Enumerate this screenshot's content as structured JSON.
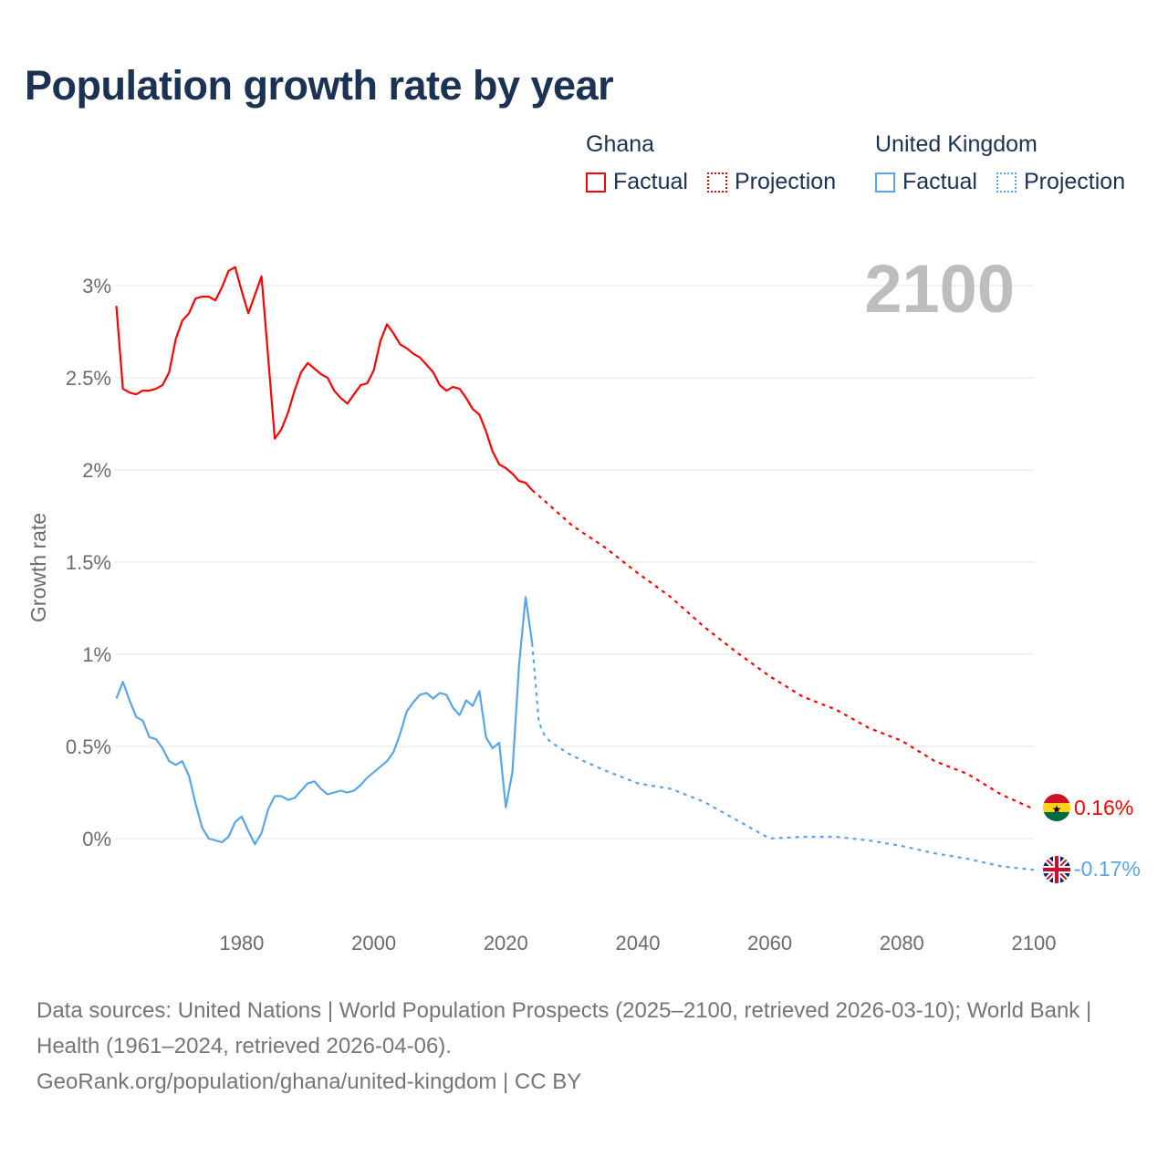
{
  "title": "Population growth rate by year",
  "legend": {
    "groups": [
      {
        "name": "Ghana",
        "color": "#ff0000",
        "factual_label": "Factual",
        "projection_label": "Projection"
      },
      {
        "name": "United Kingdom",
        "color": "#5aa5ea",
        "factual_label": "Factual",
        "projection_label": "Projection"
      }
    ]
  },
  "year_marker": "2100",
  "end_labels": {
    "ghana": "0.16%",
    "uk": "-0.17%"
  },
  "footer": {
    "sources": "Data sources: United Nations | World Population Prospects (2025–2100, retrieved 2026-03-10); World Bank | Health (1961–2024, retrieved 2026-04-06).",
    "link": "GeoRank.org/population/ghana/united-kingdom | CC BY"
  },
  "chart_data": {
    "type": "line",
    "title": "Population growth rate by year",
    "xlabel": "",
    "ylabel": "Growth rate",
    "xlim": [
      1961,
      2100
    ],
    "ylim": [
      -0.4,
      3.2
    ],
    "x_ticks": [
      "1980",
      "2000",
      "2020",
      "2040",
      "2060",
      "2080",
      "2100"
    ],
    "y_ticks": [
      "0%",
      "0.5%",
      "1%",
      "1.5%",
      "2%",
      "2.5%",
      "3%"
    ],
    "grid": true,
    "series": [
      {
        "name": "Ghana Factual",
        "color": "#ff0000",
        "dashed": false,
        "x": [
          1961,
          1962,
          1963,
          1964,
          1965,
          1966,
          1967,
          1968,
          1969,
          1970,
          1971,
          1972,
          1973,
          1974,
          1975,
          1976,
          1977,
          1978,
          1979,
          1980,
          1981,
          1982,
          1983,
          1984,
          1985,
          1986,
          1987,
          1988,
          1989,
          1990,
          1991,
          1992,
          1993,
          1994,
          1995,
          1996,
          1997,
          1998,
          1999,
          2000,
          2001,
          2002,
          2003,
          2004,
          2005,
          2006,
          2007,
          2008,
          2009,
          2010,
          2011,
          2012,
          2013,
          2014,
          2015,
          2016,
          2017,
          2018,
          2019,
          2020,
          2021,
          2022,
          2023,
          2024
        ],
        "y": [
          2.89,
          2.44,
          2.42,
          2.41,
          2.43,
          2.43,
          2.44,
          2.46,
          2.53,
          2.71,
          2.81,
          2.85,
          2.93,
          2.94,
          2.94,
          2.92,
          2.99,
          3.08,
          3.1,
          2.97,
          2.85,
          2.95,
          3.05,
          2.61,
          2.17,
          2.22,
          2.31,
          2.43,
          2.53,
          2.58,
          2.55,
          2.52,
          2.5,
          2.43,
          2.39,
          2.36,
          2.41,
          2.46,
          2.47,
          2.54,
          2.7,
          2.79,
          2.74,
          2.68,
          2.66,
          2.63,
          2.61,
          2.57,
          2.53,
          2.46,
          2.43,
          2.45,
          2.44,
          2.39,
          2.33,
          2.3,
          2.21,
          2.1,
          2.03,
          2.01,
          1.98,
          1.94,
          1.93,
          1.89
        ]
      },
      {
        "name": "Ghana Projection",
        "color": "#ff0000",
        "dashed": true,
        "x": [
          2024,
          2025,
          2030,
          2035,
          2040,
          2045,
          2050,
          2055,
          2060,
          2065,
          2070,
          2075,
          2080,
          2085,
          2090,
          2095,
          2100
        ],
        "y": [
          1.89,
          1.86,
          1.7,
          1.58,
          1.44,
          1.31,
          1.15,
          1.01,
          0.88,
          0.77,
          0.7,
          0.6,
          0.53,
          0.42,
          0.35,
          0.24,
          0.16
        ]
      },
      {
        "name": "United Kingdom Factual",
        "color": "#5aa5ea",
        "dashed": false,
        "x": [
          1961,
          1962,
          1963,
          1964,
          1965,
          1966,
          1967,
          1968,
          1969,
          1970,
          1971,
          1972,
          1973,
          1974,
          1975,
          1976,
          1977,
          1978,
          1979,
          1980,
          1981,
          1982,
          1983,
          1984,
          1985,
          1986,
          1987,
          1988,
          1989,
          1990,
          1991,
          1992,
          1993,
          1994,
          1995,
          1996,
          1997,
          1998,
          1999,
          2000,
          2001,
          2002,
          2003,
          2004,
          2005,
          2006,
          2007,
          2008,
          2009,
          2010,
          2011,
          2012,
          2013,
          2014,
          2015,
          2016,
          2017,
          2018,
          2019,
          2020,
          2021,
          2022,
          2023,
          2024
        ],
        "y": [
          0.76,
          0.85,
          0.75,
          0.66,
          0.64,
          0.55,
          0.54,
          0.49,
          0.42,
          0.4,
          0.42,
          0.34,
          0.19,
          0.06,
          0.0,
          -0.01,
          -0.02,
          0.01,
          0.09,
          0.12,
          0.04,
          -0.03,
          0.03,
          0.16,
          0.23,
          0.23,
          0.21,
          0.22,
          0.26,
          0.3,
          0.31,
          0.27,
          0.24,
          0.25,
          0.26,
          0.25,
          0.26,
          0.29,
          0.33,
          0.36,
          0.39,
          0.42,
          0.47,
          0.57,
          0.69,
          0.74,
          0.78,
          0.79,
          0.76,
          0.79,
          0.78,
          0.71,
          0.67,
          0.75,
          0.72,
          0.8,
          0.55,
          0.49,
          0.52,
          0.17,
          0.36,
          0.94,
          1.31,
          1.06
        ]
      },
      {
        "name": "United Kingdom Projection",
        "color": "#5aa5ea",
        "dashed": true,
        "x": [
          2024,
          2025,
          2026,
          2027,
          2030,
          2035,
          2040,
          2045,
          2050,
          2055,
          2060,
          2065,
          2070,
          2075,
          2080,
          2085,
          2090,
          2095,
          2100
        ],
        "y": [
          1.06,
          0.63,
          0.55,
          0.52,
          0.45,
          0.37,
          0.3,
          0.27,
          0.2,
          0.1,
          0.0,
          0.01,
          0.01,
          -0.01,
          -0.04,
          -0.08,
          -0.11,
          -0.15,
          -0.17
        ]
      }
    ]
  }
}
